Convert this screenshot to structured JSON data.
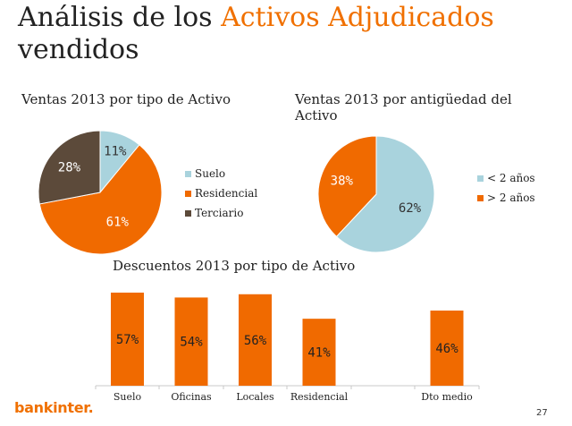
{
  "title": {
    "part1": "Análisis de los ",
    "accent": "Activos Adjudicados",
    "line2": "vendidos"
  },
  "colors": {
    "accent": "#f07000",
    "suelo": "#a9d3dd",
    "residencial": "#f06a00",
    "terciario": "#5c4a3a",
    "bar": "#f06a00"
  },
  "chart_data": [
    {
      "type": "pie",
      "title": "Ventas 2013 por tipo de Activo",
      "labels": [
        "Suelo",
        "Residencial",
        "Terciario"
      ],
      "values": [
        11,
        61,
        28
      ],
      "value_labels": [
        "11%",
        "61%",
        "28%"
      ],
      "colors": [
        "#a9d3dd",
        "#f06a00",
        "#5c4a3a"
      ],
      "legend": "right"
    },
    {
      "type": "pie",
      "title": "Ventas 2013 por antigüedad del Activo",
      "labels": [
        "< 2 años",
        "> 2 años"
      ],
      "values": [
        62,
        38
      ],
      "value_labels": [
        "62%",
        "38%"
      ],
      "colors": [
        "#a9d3dd",
        "#f06a00"
      ],
      "legend": "right"
    },
    {
      "type": "bar",
      "title": "Descuentos 2013 por tipo de Activo",
      "categories": [
        "Suelo",
        "Oficinas",
        "Locales",
        "Residencial",
        "",
        "Dto medio"
      ],
      "values": [
        57,
        54,
        56,
        41,
        null,
        46
      ],
      "value_labels": [
        "57%",
        "54%",
        "56%",
        "41%",
        "",
        "46%"
      ],
      "ylim": [
        0,
        63
      ]
    }
  ],
  "footer": {
    "logo": "bankinter.",
    "page": "27"
  }
}
